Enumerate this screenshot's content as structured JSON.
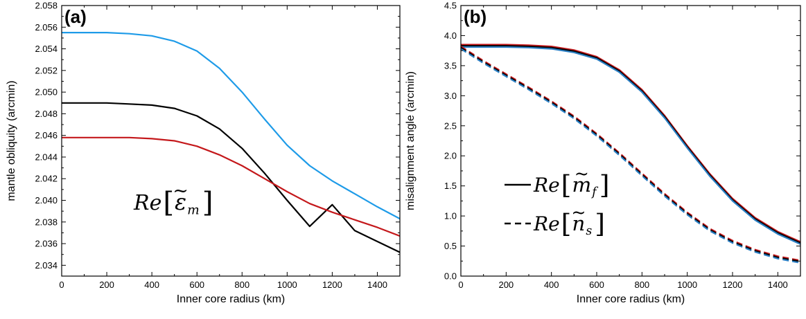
{
  "chart_data": [
    {
      "type": "line",
      "panel_label": "(a)",
      "xlabel": "Inner core radius (km)",
      "ylabel": "mantle obliquity (arcmin)",
      "xlim": [
        0,
        1500
      ],
      "ylim": [
        2.033,
        2.058
      ],
      "xticks": [
        0,
        200,
        400,
        600,
        800,
        1000,
        1200,
        1400
      ],
      "yticks": [
        2.034,
        2.036,
        2.038,
        2.04,
        2.042,
        2.044,
        2.046,
        2.048,
        2.05,
        2.052,
        2.054,
        2.056,
        2.058
      ],
      "ytick_labels": [
        "2.034",
        "2.036",
        "2.038",
        "2.040",
        "2.042",
        "2.044",
        "2.046",
        "2.048",
        "2.050",
        "2.052",
        "2.054",
        "2.056",
        "2.058"
      ],
      "annotation": {
        "prefix": "Re",
        "symbol": "ε",
        "tilde": "~",
        "subscript": "m"
      },
      "series": [
        {
          "color": "#1e9be8",
          "style": "solid",
          "x": [
            0,
            100,
            200,
            300,
            400,
            500,
            600,
            700,
            800,
            900,
            1000,
            1100,
            1200,
            1300,
            1400,
            1500
          ],
          "y": [
            2.0555,
            2.0555,
            2.0555,
            2.0554,
            2.0552,
            2.0547,
            2.0538,
            2.0522,
            2.05,
            2.0475,
            2.0451,
            2.0432,
            2.0418,
            2.0406,
            2.0394,
            2.0383
          ]
        },
        {
          "color": "#000000",
          "style": "solid",
          "x": [
            0,
            100,
            200,
            300,
            400,
            500,
            600,
            700,
            800,
            900,
            1000,
            1100,
            1200,
            1300,
            1400,
            1500
          ],
          "y": [
            2.049,
            2.049,
            2.049,
            2.0489,
            2.0488,
            2.0485,
            2.0478,
            2.0466,
            2.0448,
            2.0425,
            2.04,
            2.0376,
            2.0396,
            2.0372,
            2.0362,
            2.0352
          ]
        },
        {
          "color": "#c4181b",
          "style": "solid",
          "x": [
            0,
            100,
            200,
            300,
            400,
            500,
            600,
            700,
            800,
            900,
            1000,
            1100,
            1200,
            1300,
            1400,
            1500
          ],
          "y": [
            2.0458,
            2.0458,
            2.0458,
            2.0458,
            2.0457,
            2.0455,
            2.045,
            2.0442,
            2.0432,
            2.042,
            2.0408,
            2.0397,
            2.0389,
            2.0382,
            2.0375,
            2.0367
          ]
        }
      ]
    },
    {
      "type": "line",
      "panel_label": "(b)",
      "xlabel": "Inner core radius (km)",
      "ylabel": "misalignment angle (arcmin)",
      "xlim": [
        0,
        1500
      ],
      "ylim": [
        0,
        4.5
      ],
      "xticks": [
        0,
        200,
        400,
        600,
        800,
        1000,
        1200,
        1400
      ],
      "yticks": [
        0,
        0.5,
        1.0,
        1.5,
        2.0,
        2.5,
        3.0,
        3.5,
        4.0,
        4.5
      ],
      "ytick_labels": [
        "0.0",
        "0.5",
        "1.0",
        "1.5",
        "2.0",
        "2.5",
        "3.0",
        "3.5",
        "4.0",
        "4.5"
      ],
      "legend": [
        {
          "style": "solid",
          "prefix": "Re",
          "symbol": "m",
          "tilde": "~",
          "subscript": "f"
        },
        {
          "style": "dashed",
          "prefix": "Re",
          "symbol": "n",
          "tilde": "~",
          "subscript": "s"
        }
      ],
      "series": [
        {
          "color": "#c4181b",
          "style": "solid",
          "x": [
            0,
            100,
            200,
            300,
            400,
            500,
            600,
            700,
            800,
            900,
            1000,
            1100,
            1200,
            1300,
            1400,
            1500
          ],
          "y": [
            3.85,
            3.85,
            3.85,
            3.84,
            3.82,
            3.76,
            3.65,
            3.43,
            3.1,
            2.67,
            2.17,
            1.7,
            1.29,
            0.97,
            0.74,
            0.57
          ]
        },
        {
          "color": "#000000",
          "style": "solid",
          "x": [
            0,
            100,
            200,
            300,
            400,
            500,
            600,
            700,
            800,
            900,
            1000,
            1100,
            1200,
            1300,
            1400,
            1500
          ],
          "y": [
            3.83,
            3.83,
            3.83,
            3.82,
            3.8,
            3.74,
            3.63,
            3.41,
            3.08,
            2.65,
            2.15,
            1.68,
            1.27,
            0.95,
            0.72,
            0.55
          ]
        },
        {
          "color": "#2b7fc4",
          "style": "solid",
          "x": [
            0,
            100,
            200,
            300,
            400,
            500,
            600,
            700,
            800,
            900,
            1000,
            1100,
            1200,
            1300,
            1400,
            1500
          ],
          "y": [
            3.81,
            3.81,
            3.81,
            3.8,
            3.78,
            3.72,
            3.61,
            3.39,
            3.06,
            2.63,
            2.13,
            1.66,
            1.25,
            0.93,
            0.7,
            0.53
          ]
        },
        {
          "color": "#c4181b",
          "style": "dashed",
          "x": [
            0,
            100,
            200,
            300,
            400,
            500,
            600,
            700,
            800,
            900,
            1000,
            1100,
            1200,
            1300,
            1400,
            1500
          ],
          "y": [
            3.82,
            3.58,
            3.36,
            3.14,
            2.91,
            2.66,
            2.37,
            2.05,
            1.71,
            1.37,
            1.06,
            0.79,
            0.59,
            0.44,
            0.33,
            0.26
          ]
        },
        {
          "color": "#000000",
          "style": "dashed",
          "x": [
            0,
            100,
            200,
            300,
            400,
            500,
            600,
            700,
            800,
            900,
            1000,
            1100,
            1200,
            1300,
            1400,
            1500
          ],
          "y": [
            3.8,
            3.56,
            3.34,
            3.12,
            2.89,
            2.64,
            2.35,
            2.03,
            1.69,
            1.35,
            1.04,
            0.77,
            0.57,
            0.42,
            0.31,
            0.24
          ]
        },
        {
          "color": "#2b7fc4",
          "style": "dashed",
          "x": [
            0,
            100,
            200,
            300,
            400,
            500,
            600,
            700,
            800,
            900,
            1000,
            1100,
            1200,
            1300,
            1400,
            1500
          ],
          "y": [
            3.78,
            3.54,
            3.32,
            3.1,
            2.87,
            2.62,
            2.33,
            2.01,
            1.67,
            1.33,
            1.02,
            0.75,
            0.55,
            0.4,
            0.29,
            0.22
          ]
        }
      ]
    }
  ]
}
